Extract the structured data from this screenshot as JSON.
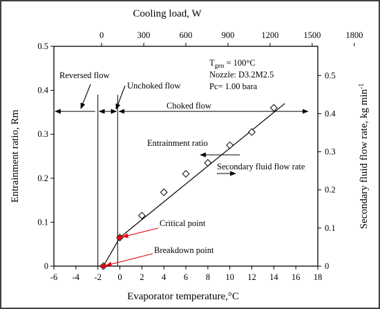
{
  "chart_data": {
    "type": "scatter",
    "xlabel": "Evaporator temperature,°C",
    "x_ticks": [
      "-6",
      "-4",
      "-2",
      "0",
      "2",
      "4",
      "6",
      "8",
      "10",
      "12",
      "14",
      "16",
      "18"
    ],
    "xlim": [
      -6,
      18
    ],
    "ylabel": "Entrainment ratio, Rm",
    "y_ticks": [
      "0",
      "0.1",
      "0.2",
      "0.3",
      "0.4",
      "0.5"
    ],
    "ylim": [
      0,
      0.5
    ],
    "top_axis": {
      "label": "Cooling load, W",
      "ticks": [
        "0",
        "300",
        "600",
        "900",
        "1200",
        "1500",
        "1800"
      ],
      "tick_x_positions": [
        -1.66,
        2.17,
        6.0,
        9.83,
        13.66,
        17.49,
        21.32
      ]
    },
    "right_axis": {
      "label_main": "Secondary fluid flow rate, kg  min",
      "label_sup": "-1",
      "ticks": [
        "0",
        "0.1",
        "0.2",
        "0.3",
        "0.4",
        "0.5"
      ],
      "tick_y_positions": [
        0,
        0.0867,
        0.1734,
        0.2601,
        0.3468,
        0.4335
      ]
    },
    "series": [
      {
        "marker": "diamond",
        "x": [
          -1.5,
          0,
          2,
          4,
          6,
          8,
          10,
          12,
          14
        ],
        "y": [
          0.0,
          0.065,
          0.115,
          0.168,
          0.21,
          0.235,
          0.275,
          0.305,
          0.36
        ]
      },
      {
        "marker": "line",
        "x": [
          -1.5,
          0,
          15
        ],
        "y": [
          0.0,
          0.065,
          0.37
        ]
      }
    ],
    "highlight_points": [
      {
        "label": "Critical point",
        "x": 0,
        "y": 0.065
      },
      {
        "label": "Breakdown point",
        "x": -1.5,
        "y": 0.0
      }
    ],
    "vertical_lines_x": [
      -2,
      -0.2
    ],
    "region_labels": [
      "Reversed flow",
      "Unchoked flow",
      "Choked flow"
    ],
    "series_labels": [
      "Entrainment ratio",
      "Secondary fluid flow rate"
    ],
    "info": {
      "tgen_main": "T",
      "tgen_sub": "gen",
      "tgen_rest": " = 100°C",
      "nozzle": "Nozzle: D3.2M2.5",
      "pc": "Pc= 1.00 bara"
    },
    "accent_color": "#e8000b",
    "grid": false
  }
}
